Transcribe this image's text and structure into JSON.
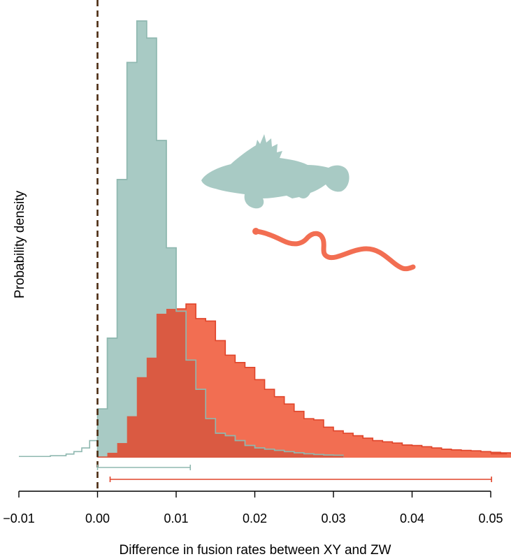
{
  "chart_data": {
    "type": "histogram",
    "title": "",
    "xlabel": "Difference in fusion rates between XY and ZW",
    "ylabel": "Probability density",
    "xlim": [
      -0.0105,
      0.0525
    ],
    "ylim": [
      0,
      180
    ],
    "x_ticks": [
      -0.01,
      0.0,
      0.01,
      0.02,
      0.03,
      0.04,
      0.05
    ],
    "x_tick_labels": [
      "−0.01",
      "0.00",
      "0.01",
      "0.02",
      "0.03",
      "0.04",
      "0.05"
    ],
    "grid": false,
    "legend": "none",
    "reference_line": {
      "x": 0.0,
      "style": "dashed",
      "color": "#4a2a10"
    },
    "series": [
      {
        "key": "fish",
        "color": "#a8cac4",
        "edge_color": "#8fb8b0",
        "bin_width": 0.00125,
        "bin_start": 0.0,
        "densities": [
          20,
          49,
          114,
          162,
          179,
          172,
          130,
          86,
          60,
          40,
          28,
          16,
          10,
          9,
          7,
          5,
          4,
          3.5,
          3,
          2.5,
          2,
          1.6,
          1.3,
          1.1,
          1
        ],
        "left_tail": {
          "x": [
            -0.01,
            -0.006,
            -0.004,
            -0.003,
            -0.002,
            -0.001,
            0.0
          ],
          "densities": [
            0.5,
            0.8,
            1.5,
            2.5,
            4,
            7,
            12
          ]
        },
        "hpd_interval": [
          0.0,
          0.0118
        ]
      },
      {
        "key": "snake",
        "color": "#f26e52",
        "edge_color": "#e0442a",
        "bin_width": 0.00125,
        "bin_start": 0.0,
        "densities": [
          0.5,
          2,
          6,
          17,
          33,
          41,
          59,
          61,
          61,
          63,
          57,
          56,
          48,
          42,
          39,
          37,
          32,
          28,
          25,
          22,
          19,
          16,
          15.5,
          12.5,
          11,
          10,
          9,
          8,
          7,
          6.5,
          6,
          5.2,
          5,
          4.5,
          4,
          3.5,
          3.2,
          3,
          2.8,
          2.5,
          2.2,
          2,
          1.8,
          1.6
        ],
        "right_tail": {
          "x": [
            0.05,
            0.052
          ],
          "densities": [
            1.6,
            2
          ]
        },
        "hpd_interval": [
          0.0016,
          0.0501
        ]
      }
    ],
    "silhouettes": [
      {
        "key": "fish",
        "icon": "fish-silhouette-icon",
        "color": "#a8cac4"
      },
      {
        "key": "snake",
        "icon": "snake-silhouette-icon",
        "color": "#f26e52"
      }
    ]
  }
}
